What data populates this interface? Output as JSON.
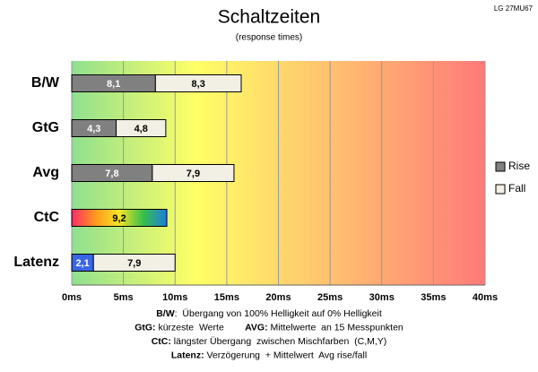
{
  "chart_data": {
    "type": "stacked_barh",
    "title": "Schaltzeiten",
    "subtitle": "(response times)",
    "corner_note": "LG 27MU67",
    "categories": [
      "B/W",
      "GtG",
      "Avg",
      "CtC",
      "Latenz"
    ],
    "series": [
      {
        "name": "Rise",
        "color": "#808080",
        "point_colors": [
          "#808080",
          "#808080",
          "#808080",
          [
            "#ff2a6a",
            "#ff9a1a",
            "#f5e628",
            "#36c04a",
            "#1e7ce0"
          ],
          "#3a66e6"
        ],
        "values": [
          8.1,
          4.3,
          7.8,
          9.2,
          2.1
        ],
        "value_labels": [
          "8,1",
          "4,3",
          "7,8",
          "9,2",
          "2,1"
        ]
      },
      {
        "name": "Fall",
        "color": "#f2f0e4",
        "values": [
          8.3,
          4.8,
          7.9,
          null,
          7.9
        ],
        "value_labels": [
          "8,3",
          "4,8",
          "7,9",
          null,
          "7,9"
        ]
      }
    ],
    "xlim": [
      0,
      40
    ],
    "xticks": [
      {
        "value": 0,
        "label": "0ms"
      },
      {
        "value": 5,
        "label": "5ms"
      },
      {
        "value": 10,
        "label": "10ms"
      },
      {
        "value": 15,
        "label": "15ms"
      },
      {
        "value": 20,
        "label": "20ms"
      },
      {
        "value": 25,
        "label": "25ms"
      },
      {
        "value": 30,
        "label": "30ms"
      },
      {
        "value": 35,
        "label": "35ms"
      },
      {
        "value": 40,
        "label": "40ms"
      }
    ],
    "grid": true,
    "legend": "right",
    "notes": [
      [
        {
          "term": "B/W",
          "text": ":  Übergang von 100% Helligkeit auf 0% Helligkeit"
        }
      ],
      [
        {
          "term": "GtG:",
          "text": " kürzeste  Werte        "
        },
        {
          "term": "AVG:",
          "text": " Mittelwerte  an 15 Messpunkten"
        }
      ],
      [
        {
          "term": "CtC:",
          "text": " längster Übergang  zwischen Mischfarben  (C,M,Y)"
        }
      ],
      [
        {
          "term": "Latenz:",
          "text": " Verzögerung  + Mittelwert  Avg rise/fall"
        }
      ]
    ]
  }
}
